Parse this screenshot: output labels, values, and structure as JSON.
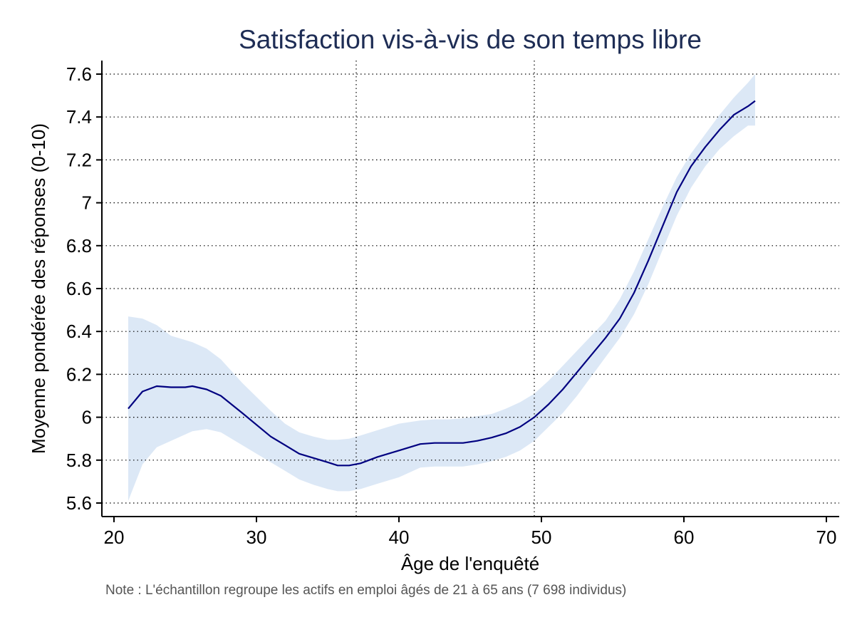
{
  "chart_data": {
    "type": "line",
    "title": "Satisfaction vis-à-vis de son temps libre",
    "xlabel": "Âge de l'enquêté",
    "ylabel": "Moyenne pondérée des réponses (0-10)",
    "xlim": [
      19,
      71
    ],
    "ylim": [
      5.54,
      7.66
    ],
    "xticks": [
      20,
      30,
      40,
      50,
      60,
      70
    ],
    "yticks": [
      5.6,
      5.8,
      6,
      6.2,
      6.4,
      6.6,
      6.8,
      7,
      7.2,
      7.4,
      7.6
    ],
    "ytick_labels": [
      "5.6",
      "5.8",
      "6",
      "6.2",
      "6.4",
      "6.6",
      "6.8",
      "7",
      "7.2",
      "7.4",
      "7.6"
    ],
    "xtick_labels": [
      "20",
      "30",
      "40",
      "50",
      "60",
      "70"
    ],
    "grid": "horizontal dotted",
    "vlines": [
      37,
      49.5
    ],
    "series": [
      {
        "type": "line",
        "color": "#000080",
        "x": [
          21,
          22,
          23,
          24,
          25,
          25.5,
          26.5,
          27.5,
          29,
          31,
          32,
          33,
          34,
          35,
          35.7,
          36.5,
          37.3,
          38.5,
          40,
          41.5,
          42.5,
          43.5,
          44.5,
          45.5,
          46.5,
          47.5,
          48.5,
          49.5,
          50.5,
          51.5,
          52.5,
          53.5,
          54.5,
          55.5,
          56.5,
          57.5,
          58.5,
          59.5,
          60.5,
          61.5,
          62.5,
          63.5,
          64.5,
          65
        ],
        "y": [
          6.04,
          6.12,
          6.145,
          6.14,
          6.14,
          6.145,
          6.13,
          6.1,
          6.02,
          5.91,
          5.87,
          5.83,
          5.81,
          5.79,
          5.775,
          5.775,
          5.785,
          5.815,
          5.845,
          5.875,
          5.88,
          5.88,
          5.88,
          5.89,
          5.905,
          5.925,
          5.955,
          6.0,
          6.06,
          6.13,
          6.21,
          6.29,
          6.37,
          6.46,
          6.58,
          6.73,
          6.89,
          7.05,
          7.17,
          7.26,
          7.34,
          7.41,
          7.45,
          7.475
        ]
      },
      {
        "type": "ci_band",
        "color": "#dce8f6",
        "x": [
          21,
          22,
          23,
          24,
          25,
          25.5,
          26.5,
          27.5,
          29,
          31,
          32,
          33,
          34,
          35,
          35.7,
          36.5,
          37.3,
          38.5,
          40,
          41.5,
          42.5,
          43.5,
          44.5,
          45.5,
          46.5,
          47.5,
          48.5,
          49.5,
          50.5,
          51.5,
          52.5,
          53.5,
          54.5,
          55.5,
          56.5,
          57.5,
          58.5,
          59.5,
          60.5,
          61.5,
          62.5,
          63.5,
          64.5,
          65
        ],
        "upper": [
          6.47,
          6.46,
          6.43,
          6.38,
          6.36,
          6.35,
          6.32,
          6.27,
          6.16,
          6.03,
          5.97,
          5.93,
          5.91,
          5.895,
          5.895,
          5.9,
          5.915,
          5.94,
          5.97,
          5.985,
          5.99,
          5.99,
          5.995,
          6.005,
          6.015,
          6.04,
          6.07,
          6.11,
          6.17,
          6.24,
          6.31,
          6.38,
          6.45,
          6.55,
          6.68,
          6.83,
          6.98,
          7.12,
          7.23,
          7.32,
          7.41,
          7.49,
          7.56,
          7.6
        ],
        "lower": [
          5.61,
          5.78,
          5.86,
          5.89,
          5.92,
          5.935,
          5.945,
          5.93,
          5.87,
          5.79,
          5.75,
          5.71,
          5.685,
          5.665,
          5.655,
          5.655,
          5.665,
          5.69,
          5.72,
          5.765,
          5.77,
          5.77,
          5.77,
          5.78,
          5.795,
          5.815,
          5.845,
          5.89,
          5.955,
          6.02,
          6.1,
          6.19,
          6.28,
          6.37,
          6.48,
          6.62,
          6.78,
          6.94,
          7.07,
          7.17,
          7.25,
          7.31,
          7.36,
          7.36
        ]
      }
    ]
  },
  "note": "Note : L'échantillon regroupe les actifs en emploi âgés de 21 à 65 ans (7 698 individus)",
  "colors": {
    "title": "#1e2d55",
    "axis": "#000000",
    "grid": "#000000",
    "line": "#000080",
    "band": "#dce8f6"
  }
}
